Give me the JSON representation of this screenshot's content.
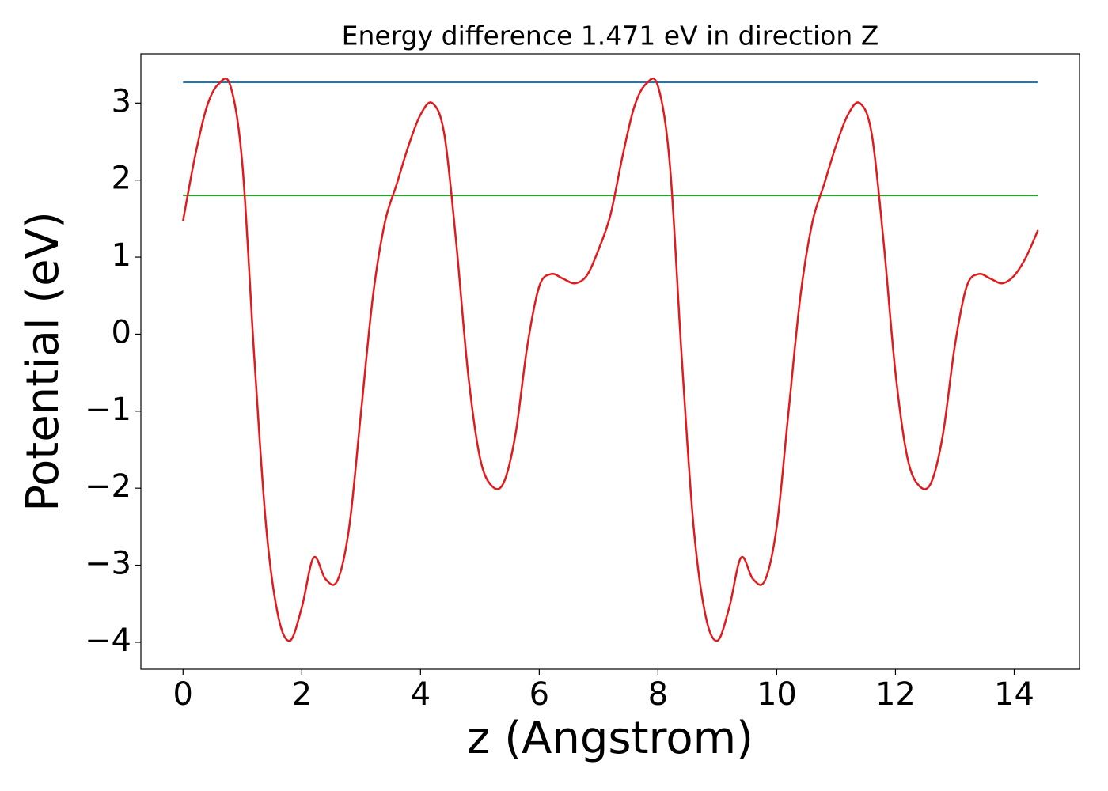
{
  "chart_data": {
    "type": "line",
    "title": "Energy difference 1.471 eV in direction Z",
    "xlabel": "z (Angstrom)",
    "ylabel": "Potential (eV)",
    "x": [
      0,
      0.2,
      0.4,
      0.6,
      0.8,
      1.0,
      1.2,
      1.4,
      1.6,
      1.8,
      2.0,
      2.2,
      2.4,
      2.6,
      2.8,
      3.0,
      3.2,
      3.4,
      3.6,
      3.8,
      4.0,
      4.2,
      4.4,
      4.6,
      4.8,
      5.0,
      5.2,
      5.4,
      5.6,
      5.8,
      6.0,
      6.2,
      6.4,
      6.6,
      6.8,
      7.0,
      7.2,
      7.4,
      7.6,
      7.8,
      8.0,
      8.2,
      8.4,
      8.6,
      8.8,
      9.0,
      9.2,
      9.4,
      9.6,
      9.8,
      10.0,
      10.2,
      10.4,
      10.6,
      10.8,
      11.0,
      11.2,
      11.4,
      11.6,
      11.8,
      12.0,
      12.2,
      12.4,
      12.6,
      12.8,
      13.0,
      13.2,
      13.4,
      13.6,
      13.8,
      14.0,
      14.2,
      14.4
    ],
    "series": [
      {
        "name": "Potential",
        "color": "#e31a1c",
        "values": [
          1.47,
          2.3,
          2.95,
          3.25,
          3.22,
          2.2,
          -0.3,
          -2.5,
          -3.65,
          -3.98,
          -3.55,
          -2.9,
          -3.18,
          -3.2,
          -2.5,
          -1.0,
          0.5,
          1.45,
          1.95,
          2.45,
          2.85,
          3.0,
          2.6,
          1.2,
          -0.5,
          -1.6,
          -1.97,
          -1.93,
          -1.3,
          -0.15,
          0.62,
          0.78,
          0.72,
          0.66,
          0.76,
          1.1,
          1.55,
          2.3,
          2.95,
          3.25,
          3.22,
          2.2,
          -0.3,
          -2.5,
          -3.65,
          -3.98,
          -3.55,
          -2.9,
          -3.18,
          -3.2,
          -2.5,
          -1.0,
          0.5,
          1.45,
          1.95,
          2.45,
          2.85,
          3.0,
          2.6,
          1.2,
          -0.5,
          -1.6,
          -1.97,
          -1.93,
          -1.3,
          -0.15,
          0.62,
          0.78,
          0.72,
          0.66,
          0.76,
          1.0,
          1.35
        ]
      }
    ],
    "hlines": [
      {
        "value": 3.27,
        "color": "#1f77b4",
        "xrange": [
          0,
          14.4
        ]
      },
      {
        "value": 1.8,
        "color": "#2ca02c",
        "xrange": [
          0,
          14.4
        ]
      }
    ],
    "xlim": [
      -0.71,
      15.1
    ],
    "ylim": [
      -4.35,
      3.64
    ],
    "xticks": [
      0,
      2,
      4,
      6,
      8,
      10,
      12,
      14
    ],
    "yticks": [
      {
        "value": -4,
        "label": "−4"
      },
      {
        "value": -3,
        "label": "−3"
      },
      {
        "value": -2,
        "label": "−2"
      },
      {
        "value": -1,
        "label": "−1"
      },
      0,
      1,
      2,
      3
    ],
    "grid": false
  }
}
